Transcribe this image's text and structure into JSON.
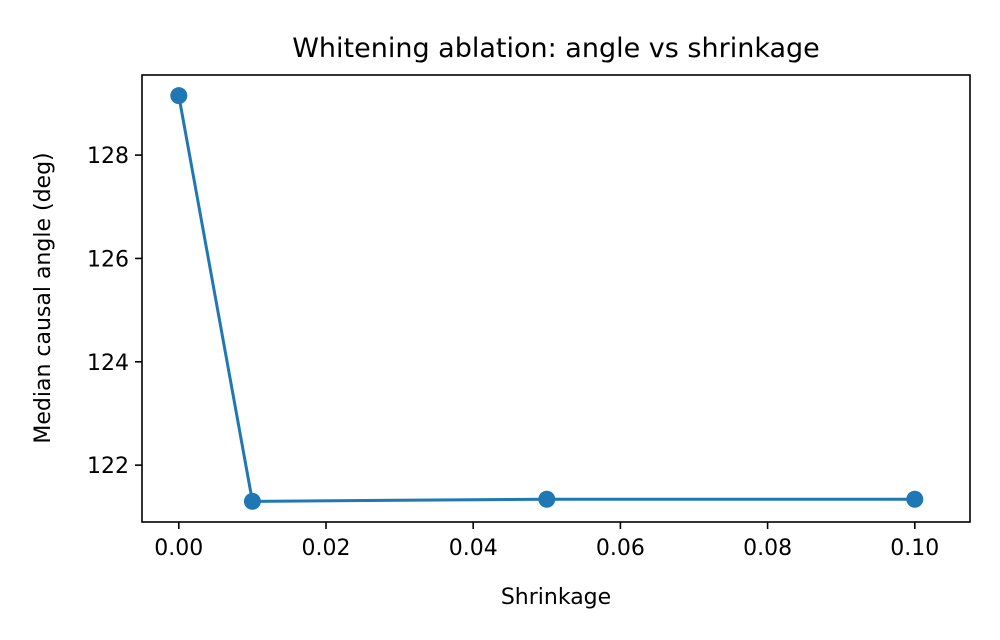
{
  "chart_data": {
    "type": "line",
    "title": "Whitening ablation: angle vs shrinkage",
    "xlabel": "Shrinkage",
    "ylabel": "Median causal angle (deg)",
    "xlim": [
      -0.005,
      0.1075
    ],
    "ylim": [
      120.9,
      129.55
    ],
    "x_ticks": [
      0.0,
      0.02,
      0.04,
      0.06,
      0.08,
      0.1
    ],
    "x_tick_labels": [
      "0.00",
      "0.02",
      "0.04",
      "0.06",
      "0.08",
      "0.10"
    ],
    "y_ticks": [
      122,
      124,
      126,
      128
    ],
    "y_tick_labels": [
      "122",
      "124",
      "126",
      "128"
    ],
    "grid": false,
    "legend": false,
    "series": [
      {
        "x": [
          0.0,
          0.01,
          0.05,
          0.1
        ],
        "y": [
          129.15,
          121.3,
          121.34,
          121.34
        ],
        "color": "#1f77b4",
        "marker": "circle"
      }
    ]
  }
}
